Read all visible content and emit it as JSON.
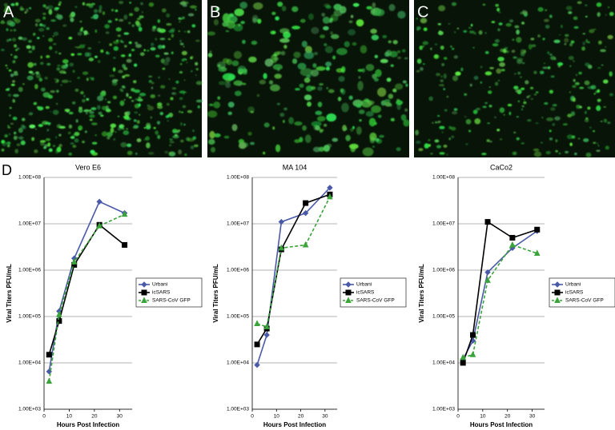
{
  "panels": [
    "A",
    "B",
    "C"
  ],
  "chart_label": "D",
  "chart_data": [
    {
      "type": "line",
      "title": "Vero E6",
      "x_label": "Hours Post Infection",
      "y_label": "Viral Titers PFU/mL",
      "x": [
        2,
        6,
        12,
        22,
        32
      ],
      "xlim": [
        0,
        35
      ],
      "xticks": [
        0,
        10,
        20,
        30
      ],
      "ylim": [
        1000,
        100000000
      ],
      "log_y": true,
      "grid": true,
      "legend": "right",
      "yticks": [
        {
          "value": 1000,
          "label": "1.00E+03"
        },
        {
          "value": 10000,
          "label": "1.00E+04"
        },
        {
          "value": 100000,
          "label": "1.00E+05"
        },
        {
          "value": 1000000,
          "label": "1.00E+06"
        },
        {
          "value": 10000000,
          "label": "1.00E+07"
        },
        {
          "value": 100000000,
          "label": "1.00E+08"
        }
      ],
      "series": [
        {
          "name": "Urbani",
          "color": "#4a5aa8",
          "marker": "diamond",
          "dashed": false,
          "values": [
            6500,
            130000,
            1800000,
            30000000,
            17000000
          ]
        },
        {
          "name": "icSARS",
          "color": "#000000",
          "marker": "square",
          "dashed": false,
          "values": [
            15000,
            80000,
            1300000,
            9500000,
            3500000
          ]
        },
        {
          "name": "SARS-CoV GFP",
          "color": "#3aa33a",
          "marker": "triangle",
          "dashed": true,
          "values": [
            4000,
            110000,
            1500000,
            9000000,
            16000000
          ]
        }
      ]
    },
    {
      "type": "line",
      "title": "MA 104",
      "x_label": "Hours Post Infection",
      "y_label": "Viral Titers PFU/mL",
      "x": [
        2,
        6,
        12,
        22,
        32
      ],
      "xlim": [
        0,
        35
      ],
      "xticks": [
        0,
        10,
        20,
        30
      ],
      "ylim": [
        1000,
        100000000
      ],
      "log_y": true,
      "grid": true,
      "legend": "right",
      "yticks": [
        {
          "value": 1000,
          "label": "1.00E+03"
        },
        {
          "value": 10000,
          "label": "1.00E+04"
        },
        {
          "value": 100000,
          "label": "1.00E+05"
        },
        {
          "value": 1000000,
          "label": "1.00E+06"
        },
        {
          "value": 10000000,
          "label": "1.00E+07"
        },
        {
          "value": 100000000,
          "label": "1.00E+08"
        }
      ],
      "series": [
        {
          "name": "Urbani",
          "color": "#4a5aa8",
          "marker": "diamond",
          "dashed": false,
          "values": [
            9000,
            40000,
            11000000,
            17000000,
            60000000
          ]
        },
        {
          "name": "icSARS",
          "color": "#000000",
          "marker": "square",
          "dashed": false,
          "values": [
            25000,
            55000,
            2800000,
            28000000,
            43000000
          ]
        },
        {
          "name": "SARS-CoV GFP",
          "color": "#3aa33a",
          "marker": "triangle",
          "dashed": true,
          "values": [
            70000,
            60000,
            3000000,
            3500000,
            38000000
          ]
        }
      ]
    },
    {
      "type": "line",
      "title": "CaCo2",
      "x_label": "Hours Post Infection",
      "y_label": "Viral Titers PFU/mL",
      "x": [
        2,
        6,
        12,
        22,
        32
      ],
      "xlim": [
        0,
        35
      ],
      "xticks": [
        0,
        10,
        20,
        30
      ],
      "ylim": [
        1000,
        100000000
      ],
      "log_y": true,
      "grid": true,
      "legend": "right",
      "yticks": [
        {
          "value": 1000,
          "label": "1.00E+03"
        },
        {
          "value": 10000,
          "label": "1.00E+04"
        },
        {
          "value": 100000,
          "label": "1.00E+05"
        },
        {
          "value": 1000000,
          "label": "1.00E+06"
        },
        {
          "value": 10000000,
          "label": "1.00E+07"
        },
        {
          "value": 100000000,
          "label": "1.00E+08"
        }
      ],
      "series": [
        {
          "name": "Urbani",
          "color": "#4a5aa8",
          "marker": "diamond",
          "dashed": false,
          "values": [
            12000,
            30000,
            900000,
            3000000,
            7000000
          ]
        },
        {
          "name": "icSARS",
          "color": "#000000",
          "marker": "square",
          "dashed": false,
          "values": [
            10000,
            40000,
            11000000,
            5000000,
            7500000
          ]
        },
        {
          "name": "SARS-CoV GFP",
          "color": "#3aa33a",
          "marker": "triangle",
          "dashed": true,
          "values": [
            13000,
            15000,
            600000,
            3500000,
            2300000
          ]
        }
      ]
    }
  ]
}
